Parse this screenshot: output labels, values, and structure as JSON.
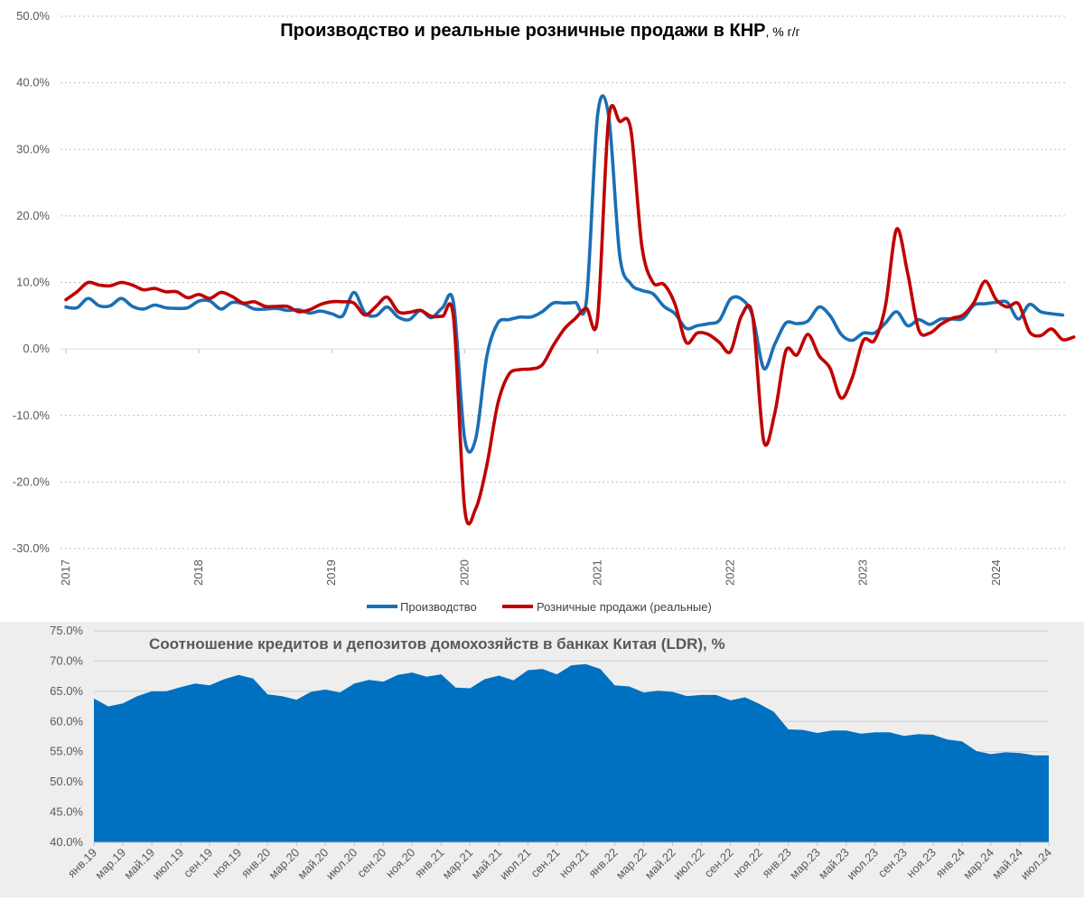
{
  "chart_data": [
    {
      "type": "line",
      "title": "Производство и реальные розничные продажи в КНР",
      "title_unit": ", % г/г",
      "xlabel": "",
      "ylabel": "",
      "ylim": [
        -30,
        50
      ],
      "y_ticks": [
        50,
        40,
        30,
        20,
        10,
        0,
        -10,
        -20,
        -30
      ],
      "y_tick_labels": [
        "50.0%",
        "40.0%",
        "30.0%",
        "20.0%",
        "10.0%",
        "0.0%",
        "-10.0%",
        "-20.0%",
        "-30.0%"
      ],
      "x_start": "2017-01",
      "x_tick_labels": [
        "2017",
        "2018",
        "2019",
        "2020",
        "2021",
        "2022",
        "2023",
        "2024"
      ],
      "legend_position": "bottom",
      "series": [
        {
          "name": "Производство",
          "color": "#1a6fb5",
          "values": [
            6.3,
            6.2,
            7.6,
            6.5,
            6.5,
            7.6,
            6.4,
            6.0,
            6.6,
            6.2,
            6.1,
            6.2,
            7.2,
            7.2,
            6.0,
            7.0,
            6.8,
            6.0,
            6.0,
            6.1,
            5.8,
            5.9,
            5.4,
            5.7,
            5.3,
            5.0,
            8.5,
            5.4,
            5.0,
            6.3,
            4.8,
            4.4,
            5.8,
            4.7,
            6.2,
            6.9,
            -13.5,
            -13.5,
            -1.1,
            3.9,
            4.4,
            4.8,
            4.8,
            5.6,
            6.9,
            6.9,
            7.0,
            7.3,
            35.1,
            35.1,
            14.1,
            9.8,
            8.8,
            8.3,
            6.4,
            5.3,
            3.1,
            3.5,
            3.8,
            4.3,
            7.5,
            7.5,
            5.0,
            -2.9,
            0.7,
            3.9,
            3.8,
            4.2,
            6.3,
            5.0,
            2.2,
            1.3,
            2.4,
            2.4,
            3.9,
            5.6,
            3.5,
            4.4,
            3.7,
            4.5,
            4.5,
            4.6,
            6.6,
            6.8,
            7.0,
            7.0,
            4.5,
            6.7,
            5.6,
            5.3,
            5.1
          ],
          "point_labels": []
        },
        {
          "name": "Розничные продажи (реальные)",
          "color": "#c00000",
          "values": [
            7.4,
            8.6,
            10.0,
            9.6,
            9.5,
            10.0,
            9.6,
            8.9,
            9.1,
            8.6,
            8.6,
            7.7,
            8.2,
            7.6,
            8.5,
            7.9,
            6.9,
            7.1,
            6.4,
            6.4,
            6.4,
            5.6,
            5.9,
            6.7,
            7.1,
            7.1,
            6.9,
            5.1,
            6.4,
            7.8,
            5.6,
            5.5,
            5.8,
            4.9,
            4.9,
            4.7,
            -24.0,
            -24.0,
            -17.5,
            -8.2,
            -3.8,
            -3.1,
            -3.0,
            -2.4,
            0.5,
            3.0,
            4.6,
            6.1,
            4.6,
            34.5,
            34.2,
            33.0,
            15.5,
            10.0,
            9.7,
            6.7,
            1.0,
            2.4,
            2.2,
            1.0,
            -0.4,
            5.0,
            5.0,
            -13.8,
            -9.7,
            -0.3,
            -0.9,
            2.2,
            -1.0,
            -2.9,
            -7.4,
            -4.3,
            1.3,
            1.3,
            6.5,
            18.0,
            11.4,
            2.9,
            2.4,
            3.7,
            4.6,
            5.1,
            7.0,
            10.2,
            7.4,
            6.3,
            6.8,
            2.6,
            2.0,
            3.0,
            1.4,
            1.8
          ],
          "point_labels": []
        }
      ]
    },
    {
      "type": "area",
      "title": "Соотношение кредитов и депозитов домохозяйств в банках Китая (LDR), %",
      "xlabel": "",
      "ylabel": "",
      "ylim": [
        40,
        75
      ],
      "y_ticks": [
        75,
        70,
        65,
        60,
        55,
        50,
        45,
        40
      ],
      "y_tick_labels": [
        "75.0%",
        "70.0%",
        "65.0%",
        "60.0%",
        "55.0%",
        "50.0%",
        "45.0%",
        "40.0%"
      ],
      "x_tick_labels": [
        "янв.19",
        "мар.19",
        "май.19",
        "июл.19",
        "сен.19",
        "ноя.19",
        "янв.20",
        "мар.20",
        "май.20",
        "июл.20",
        "сен.20",
        "ноя.20",
        "янв.21",
        "мар.21",
        "май.21",
        "июл.21",
        "сен.21",
        "ноя.21",
        "янв.22",
        "мар.22",
        "май.22",
        "июл.22",
        "сен.22",
        "ноя.22",
        "янв.23",
        "мар.23",
        "май.23",
        "июл.23",
        "сен.23",
        "ноя.23",
        "янв.24",
        "мар.24",
        "май.24",
        "июл.24"
      ],
      "series": [
        {
          "name": "LDR",
          "color": "#0070c0",
          "values": [
            63.8,
            62.5,
            63.0,
            64.2,
            65.0,
            65.0,
            65.7,
            66.3,
            66.0,
            67.0,
            67.7,
            67.1,
            64.5,
            64.2,
            63.6,
            64.9,
            65.3,
            64.8,
            66.3,
            66.9,
            66.6,
            67.7,
            68.1,
            67.4,
            67.8,
            65.6,
            65.5,
            67.0,
            67.6,
            66.8,
            68.5,
            68.7,
            67.8,
            69.3,
            69.5,
            68.7,
            66.0,
            65.8,
            64.8,
            65.1,
            64.9,
            64.2,
            64.4,
            64.4,
            63.5,
            64.0,
            62.9,
            61.6,
            58.7,
            58.6,
            58.1,
            58.5,
            58.5,
            58.0,
            58.2,
            58.2,
            57.6,
            57.9,
            57.8,
            57.0,
            56.7,
            55.1,
            54.6,
            54.9,
            54.8,
            54.4,
            54.4
          ]
        }
      ]
    }
  ]
}
